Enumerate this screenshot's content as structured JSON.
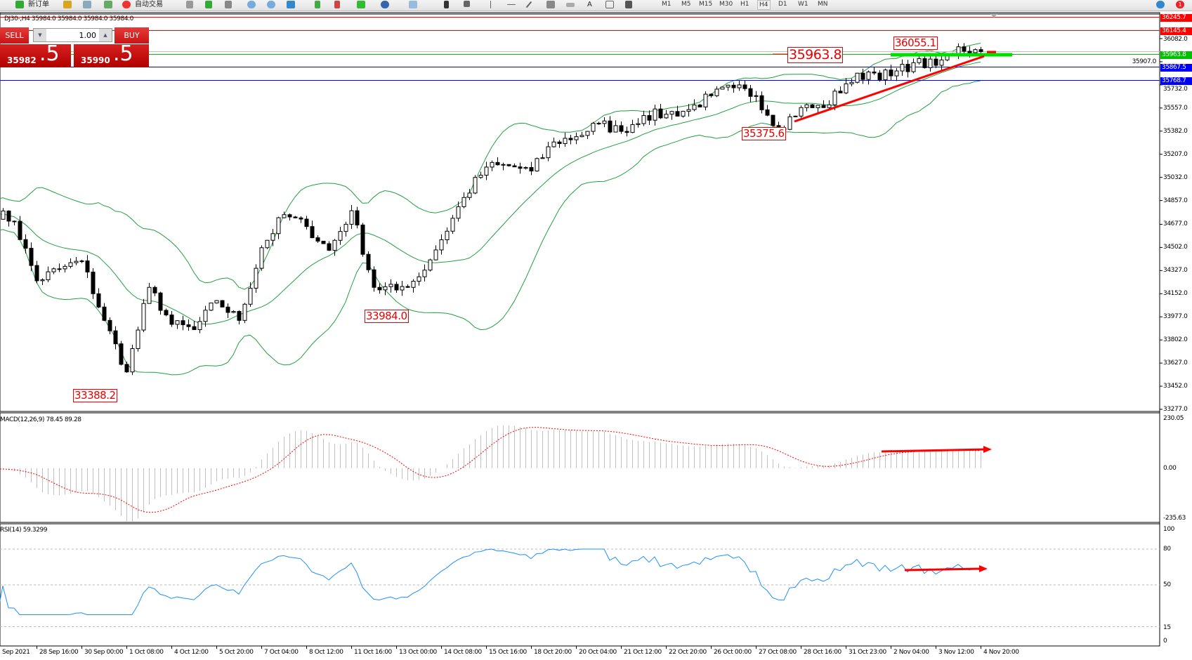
{
  "toolbar": {
    "new_order": "新订单",
    "auto_trading": "自动交易",
    "timeframes": [
      "M1",
      "M5",
      "M15",
      "M30",
      "H1",
      "H4",
      "D1",
      "W1",
      "MN"
    ],
    "active_timeframe": "H4",
    "notification_count": "1"
  },
  "chart": {
    "title": "DJ30-,H4  35984.0 35984.0 35984.0 35984.0"
  },
  "trade_panel": {
    "sell_label": "SELL",
    "buy_label": "BUY",
    "lot": "1.00",
    "sell_price_main": "35982",
    "sell_price_big": ".5",
    "buy_price_main": "35990",
    "buy_price_big": ".5"
  },
  "colors": {
    "bull": "#ffffff",
    "bear": "#000000",
    "bands": "#22a040",
    "macd_hist": "#c0c0c0",
    "macd_signal": "#ff0000",
    "rsi": "#1e90ff",
    "annotation": "#ff0000"
  },
  "chart_data": {
    "type": "candlestick",
    "symbol": "DJ30-",
    "timeframe": "H4",
    "closes_every_4_bars": [
      34780,
      34700,
      34250,
      34340,
      34400,
      33950,
      33560,
      34200,
      33920,
      33880,
      34100,
      33950,
      34500,
      34750,
      34660,
      34480,
      34780,
      34200,
      34180,
      34280,
      34560,
      34880,
      35110,
      35120,
      35080,
      35300,
      35340,
      35440,
      35380,
      35500,
      35510,
      35545,
      35650,
      35710,
      35650,
      35400,
      35560,
      35560,
      35740,
      35830,
      35800,
      35900,
      35880,
      36020,
      35984
    ],
    "price_axis": [
      "36082.0",
      "35907.0",
      "35732.0",
      "35557.0",
      "35382.0",
      "35207.0",
      "35032.0",
      "34857.0",
      "34677.0",
      "34502.0",
      "34327.0",
      "34152.0",
      "33977.0",
      "33802.0",
      "33627.0",
      "33452.0",
      "33277.0"
    ],
    "price_range": [
      33277.0,
      36245.7
    ],
    "levels": [
      {
        "price": "36245.7",
        "color": "#ff0000"
      },
      {
        "price": "36145.4",
        "color": "#ff0000"
      },
      {
        "price": "35963.8",
        "color": "#00c000"
      },
      {
        "price": "35867.5",
        "color": "#0000ff"
      },
      {
        "price": "35768.7",
        "color": "#0000ff"
      }
    ],
    "bid_line": "35984.0",
    "annotations": [
      "36055.1",
      "35963.8",
      "35375.6",
      "33984.0",
      "33388.2"
    ],
    "time_axis": [
      "Sep 2021",
      "28 Sep 16:00",
      "30 Sep 00:00",
      "1 Oct 08:00",
      "4 Oct 12:00",
      "5 Oct 20:00",
      "7 Oct 04:00",
      "8 Oct 12:00",
      "11 Oct 16:00",
      "13 Oct 00:00",
      "14 Oct 08:00",
      "15 Oct 16:00",
      "18 Oct 20:00",
      "20 Oct 04:00",
      "21 Oct 12:00",
      "22 Oct 20:00",
      "26 Oct 00:00",
      "27 Oct 08:00",
      "28 Oct 16:00",
      "31 Oct 23:00",
      "2 Nov 04:00",
      "3 Nov 12:00",
      "4 Nov 20:00"
    ],
    "macd": {
      "label": "MACD(12,26,9) 78.45 89.28",
      "axis": [
        "230.05",
        "0.00",
        "-235.63"
      ],
      "range": [
        -235.63,
        230.05
      ]
    },
    "rsi": {
      "label": "RSI(14) 59.3299",
      "axis": [
        "100",
        "80",
        "50",
        "15",
        "0"
      ],
      "levels": [
        80,
        50,
        15
      ]
    }
  }
}
